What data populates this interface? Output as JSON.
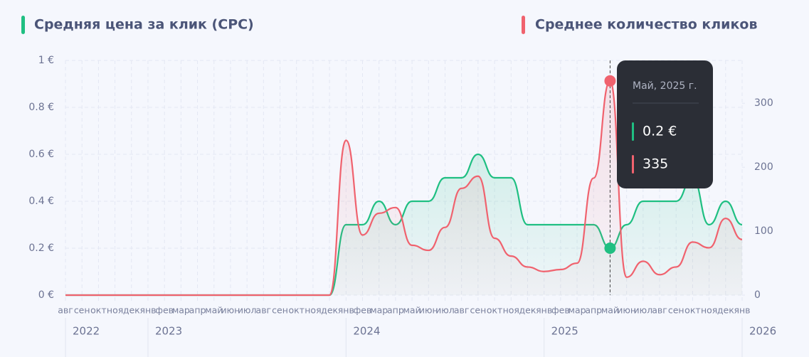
{
  "chart_data": {
    "type": "line",
    "legend_position": "top",
    "categories": [
      "авг",
      "сен",
      "окт",
      "ноя",
      "дек",
      "янв",
      "фев",
      "мар",
      "апр",
      "май",
      "июн",
      "июл",
      "авг",
      "сен",
      "окт",
      "ноя",
      "дек",
      "янв",
      "фев",
      "мар",
      "апр",
      "май",
      "июн",
      "июл",
      "авг",
      "сен",
      "окт",
      "ноя",
      "дек",
      "янв",
      "фев",
      "мар",
      "апр",
      "май",
      "июн",
      "июл",
      "авг",
      "сен",
      "окт",
      "ноя",
      "дек",
      "янв"
    ],
    "year_labels": [
      {
        "value": 0,
        "label": "2022"
      },
      {
        "value": 5,
        "label": "2023"
      },
      {
        "value": 17,
        "label": "2024"
      },
      {
        "value": 29,
        "label": "2025"
      },
      {
        "value": 41,
        "label": "2026"
      }
    ],
    "series": [
      {
        "name": "Средняя цена за клик (CPC)",
        "color": "#1fbf82",
        "values": [
          0,
          0,
          0,
          0,
          0,
          0,
          0,
          0,
          0,
          0,
          0,
          0,
          0,
          0,
          0,
          0,
          0,
          0.3,
          0.3,
          0.4,
          0.3,
          0.4,
          0.4,
          0.5,
          0.5,
          0.6,
          0.5,
          0.5,
          0.3,
          0.3,
          0.3,
          0.3,
          0.3,
          0.2,
          0.3,
          0.4,
          0.4,
          0.4,
          0.5,
          0.3,
          0.4,
          0.3
        ]
      },
      {
        "name": "Среднее количество кликов",
        "color": "#f0626e",
        "axis": "y2",
        "values": [
          0,
          0,
          0,
          0,
          0,
          0,
          0,
          0,
          0,
          0,
          0,
          0,
          0,
          0,
          0,
          0,
          0,
          242,
          94,
          128,
          137,
          78,
          70,
          106,
          167,
          186,
          89,
          61,
          44,
          37,
          40,
          50,
          183,
          335,
          28,
          53,
          32,
          44,
          83,
          74,
          120,
          87
        ]
      }
    ],
    "ylim": [
      0,
      1
    ],
    "yticks": [
      {
        "value": 0,
        "label": "0 €"
      },
      {
        "value": 0.2,
        "label": "0.2 €"
      },
      {
        "value": 0.4,
        "label": "0.4 €"
      },
      {
        "value": 0.6,
        "label": "0.6 €"
      },
      {
        "value": 0.8,
        "label": "0.8 €"
      },
      {
        "value": 1,
        "label": "1 €"
      }
    ],
    "y2lim": [
      0,
      367
    ],
    "y2ticks": [
      0,
      100,
      200,
      300
    ],
    "grid": true,
    "highlight": 33,
    "tooltip": {
      "title": "Май, 2025 г.",
      "lines": [
        "0.2 €",
        "335"
      ]
    }
  }
}
